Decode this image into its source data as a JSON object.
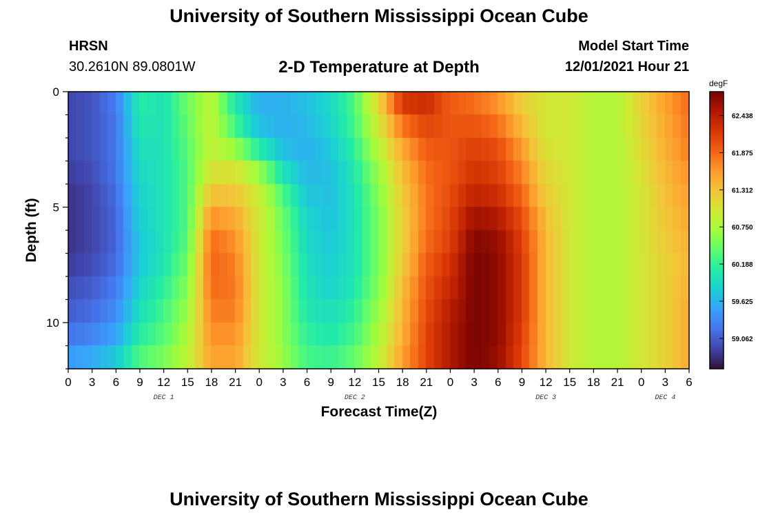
{
  "page": {
    "title": "University of Southern Mississippi Ocean Cube",
    "station": "HRSN",
    "coords": "30.2610N  89.0801W",
    "start_label": "Model Start Time",
    "start_time": "12/01/2021 Hour 21",
    "repeat_title": "University of Southern Mississippi Ocean Cube"
  },
  "chart_data": {
    "type": "heatmap",
    "title": "2-D Temperature at Depth",
    "xlabel": "Forecast Time(Z)",
    "ylabel": "Depth (ft)",
    "colorbar_unit": "degF",
    "colorbar_ticks": [
      "62.438",
      "61.875",
      "61.312",
      "60.750",
      "60.188",
      "59.625",
      "59.062"
    ],
    "colorbar_range": [
      58.6,
      62.8
    ],
    "colormap": [
      "#30123b",
      "#4145ab",
      "#4675ed",
      "#39a2fc",
      "#1bcfd4",
      "#24eca6",
      "#61fc6c",
      "#a4fc3b",
      "#d1e834",
      "#f3c63a",
      "#fe9b2d",
      "#f36315",
      "#d93806",
      "#b11901",
      "#7a0402"
    ],
    "x_tick_labels": [
      "0",
      "3",
      "6",
      "9",
      "12",
      "15",
      "18",
      "21",
      "0",
      "3",
      "6",
      "9",
      "12",
      "15",
      "18",
      "21",
      "0",
      "3",
      "6",
      "9",
      "12",
      "15",
      "18",
      "21",
      "0",
      "3",
      "6"
    ],
    "x_range_hours": [
      0,
      78
    ],
    "day_labels": [
      {
        "label": "DEC 1",
        "hour": 12
      },
      {
        "label": "DEC 2",
        "hour": 36
      },
      {
        "label": "DEC 3",
        "hour": 60
      },
      {
        "label": "DEC 4",
        "hour": 75
      }
    ],
    "y_tick_labels": [
      "0",
      "5",
      "10"
    ],
    "y_range_ft": [
      0,
      12
    ],
    "depth_levels_ft": [
      0,
      1,
      2,
      3,
      4,
      5,
      6,
      7,
      8,
      9,
      10,
      11,
      12
    ],
    "hours": [
      0,
      3,
      6,
      9,
      12,
      15,
      18,
      21,
      24,
      27,
      30,
      33,
      36,
      39,
      42,
      45,
      48,
      51,
      54,
      57,
      60,
      63,
      66,
      69,
      72,
      75,
      78
    ],
    "temperature_degF": [
      [
        58.9,
        59.0,
        59.3,
        60.1,
        60.0,
        60.5,
        60.8,
        60.0,
        59.6,
        59.6,
        59.7,
        59.9,
        60.3,
        61.2,
        62.4,
        62.4,
        61.9,
        61.8,
        61.6,
        61.2,
        61.0,
        61.0,
        60.8,
        60.8,
        61.2,
        61.6,
        61.9
      ],
      [
        58.9,
        59.0,
        59.2,
        60.1,
        60.0,
        60.4,
        60.9,
        60.1,
        59.6,
        59.6,
        59.7,
        59.9,
        60.3,
        61.1,
        62.0,
        62.2,
        62.0,
        61.9,
        61.7,
        61.3,
        61.0,
        61.0,
        60.8,
        60.8,
        61.2,
        61.5,
        61.8
      ],
      [
        58.9,
        59.0,
        59.2,
        60.0,
        60.0,
        60.4,
        60.9,
        60.4,
        59.8,
        59.6,
        59.6,
        59.8,
        60.2,
        60.9,
        61.6,
        62.0,
        62.0,
        62.1,
        62.0,
        61.5,
        61.0,
        61.0,
        60.8,
        60.8,
        61.1,
        61.5,
        61.8
      ],
      [
        58.9,
        59.0,
        59.2,
        59.9,
        60.0,
        60.3,
        60.9,
        60.9,
        60.4,
        59.8,
        59.6,
        59.7,
        60.1,
        60.7,
        61.4,
        61.9,
        62.0,
        62.2,
        62.1,
        61.7,
        61.1,
        61.0,
        60.8,
        60.8,
        61.1,
        61.4,
        61.7
      ],
      [
        58.8,
        58.9,
        59.2,
        59.9,
        60.0,
        60.3,
        61.2,
        61.2,
        60.9,
        60.2,
        59.7,
        59.7,
        60.0,
        60.6,
        61.3,
        61.8,
        62.0,
        62.3,
        62.2,
        61.8,
        61.2,
        61.0,
        60.8,
        60.8,
        61.0,
        61.4,
        61.6
      ],
      [
        58.8,
        58.9,
        59.1,
        59.8,
        60.0,
        60.3,
        61.5,
        61.4,
        61.0,
        60.4,
        59.8,
        59.7,
        60.0,
        60.5,
        61.2,
        61.8,
        62.1,
        62.5,
        62.4,
        62.0,
        61.3,
        61.0,
        60.8,
        60.8,
        61.0,
        61.3,
        61.5
      ],
      [
        58.8,
        58.9,
        59.1,
        59.8,
        60.0,
        60.3,
        61.8,
        61.6,
        61.0,
        60.5,
        59.9,
        59.7,
        60.0,
        60.5,
        61.2,
        61.8,
        62.1,
        62.7,
        62.6,
        62.1,
        61.4,
        61.0,
        60.8,
        60.8,
        61.0,
        61.3,
        61.5
      ],
      [
        58.8,
        58.9,
        59.1,
        59.7,
        60.0,
        60.4,
        61.9,
        61.7,
        61.0,
        60.5,
        59.9,
        59.8,
        60.0,
        60.5,
        61.2,
        61.9,
        62.2,
        62.8,
        62.7,
        62.2,
        61.4,
        61.0,
        60.8,
        60.8,
        61.0,
        61.2,
        61.4
      ],
      [
        58.9,
        59.0,
        59.2,
        59.8,
        60.1,
        60.5,
        61.9,
        61.8,
        61.0,
        60.6,
        60.0,
        59.8,
        60.0,
        60.5,
        61.3,
        62.0,
        62.3,
        62.8,
        62.7,
        62.2,
        61.4,
        61.0,
        60.8,
        60.8,
        61.0,
        61.2,
        61.4
      ],
      [
        59.0,
        59.1,
        59.3,
        59.9,
        60.2,
        60.6,
        61.8,
        61.8,
        61.0,
        60.6,
        60.0,
        59.9,
        60.1,
        60.6,
        61.4,
        62.0,
        62.4,
        62.8,
        62.7,
        62.2,
        61.4,
        61.0,
        60.8,
        60.8,
        61.0,
        61.2,
        61.5
      ],
      [
        59.1,
        59.2,
        59.4,
        60.0,
        60.3,
        60.7,
        61.7,
        61.7,
        61.0,
        60.6,
        60.1,
        60.0,
        60.2,
        60.7,
        61.4,
        62.1,
        62.5,
        62.8,
        62.7,
        62.2,
        61.4,
        61.0,
        60.8,
        60.8,
        61.0,
        61.2,
        61.5
      ],
      [
        59.3,
        59.4,
        59.6,
        60.2,
        60.4,
        60.8,
        61.6,
        61.6,
        61.0,
        60.6,
        60.2,
        60.1,
        60.3,
        60.8,
        61.5,
        62.1,
        62.5,
        62.8,
        62.7,
        62.1,
        61.4,
        61.0,
        60.8,
        60.8,
        61.0,
        61.2,
        61.5
      ],
      [
        59.6,
        59.7,
        59.9,
        60.4,
        60.6,
        60.9,
        61.5,
        61.5,
        61.0,
        60.7,
        60.3,
        60.3,
        60.5,
        60.9,
        61.6,
        62.1,
        62.5,
        62.8,
        62.6,
        62.1,
        61.4,
        61.0,
        60.8,
        60.8,
        61.0,
        61.2,
        61.5
      ]
    ]
  }
}
